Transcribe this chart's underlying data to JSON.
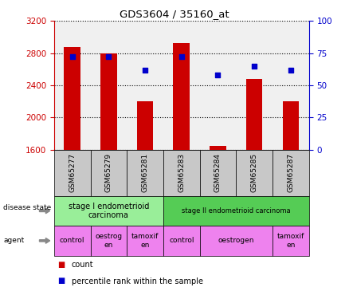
{
  "title": "GDS3604 / 35160_at",
  "samples": [
    "GSM65277",
    "GSM65279",
    "GSM65281",
    "GSM65283",
    "GSM65284",
    "GSM65285",
    "GSM65287"
  ],
  "counts": [
    2880,
    2800,
    2200,
    2920,
    1640,
    2480,
    2200
  ],
  "percentiles": [
    72,
    72,
    62,
    72,
    58,
    65,
    62
  ],
  "ylim_left": [
    1600,
    3200
  ],
  "ylim_right": [
    0,
    100
  ],
  "yticks_left": [
    1600,
    2000,
    2400,
    2800,
    3200
  ],
  "yticks_right": [
    0,
    25,
    50,
    75,
    100
  ],
  "bar_color": "#cc0000",
  "dot_color": "#0000cc",
  "bar_width": 0.45,
  "disease_state_groups": [
    {
      "label": "stage I endometrioid\ncarcinoma",
      "start": 0,
      "end": 3,
      "color": "#99ee99"
    },
    {
      "label": "stage II endometrioid carcinoma",
      "start": 3,
      "end": 7,
      "color": "#55cc55"
    }
  ],
  "agent_groups": [
    {
      "label": "control",
      "start": 0,
      "end": 1,
      "color": "#ee82ee"
    },
    {
      "label": "oestrog\nen",
      "start": 1,
      "end": 2,
      "color": "#ee82ee"
    },
    {
      "label": "tamoxif\nen",
      "start": 2,
      "end": 3,
      "color": "#ee82ee"
    },
    {
      "label": "control",
      "start": 3,
      "end": 4,
      "color": "#ee82ee"
    },
    {
      "label": "oestrogen",
      "start": 4,
      "end": 6,
      "color": "#ee82ee"
    },
    {
      "label": "tamoxif\nen",
      "start": 6,
      "end": 7,
      "color": "#ee82ee"
    }
  ],
  "left_axis_color": "#cc0000",
  "right_axis_color": "#0000cc",
  "grid_color": "#000000",
  "sample_bg_color": "#c8c8c8",
  "plot_bg_color": "#f0f0f0"
}
